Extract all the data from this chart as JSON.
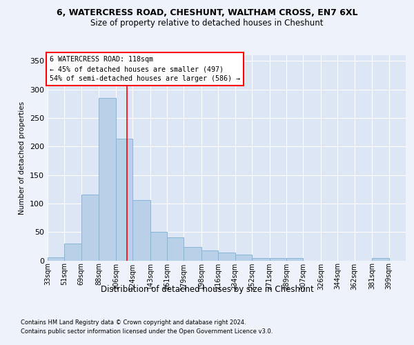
{
  "title": "6, WATERCRESS ROAD, CHESHUNT, WALTHAM CROSS, EN7 6XL",
  "subtitle": "Size of property relative to detached houses in Cheshunt",
  "xlabel_bottom": "Distribution of detached houses by size in Cheshunt",
  "ylabel": "Number of detached properties",
  "bin_edges": [
    33,
    51,
    69,
    88,
    106,
    124,
    143,
    161,
    179,
    198,
    216,
    234,
    252,
    271,
    289,
    307,
    326,
    344,
    362,
    381,
    399,
    417
  ],
  "bar_heights": [
    5,
    30,
    116,
    285,
    213,
    106,
    50,
    40,
    23,
    17,
    14,
    10,
    4,
    4,
    4,
    0,
    0,
    0,
    0,
    4,
    0
  ],
  "bar_labels": [
    "33sqm",
    "51sqm",
    "69sqm",
    "88sqm",
    "106sqm",
    "124sqm",
    "143sqm",
    "161sqm",
    "179sqm",
    "198sqm",
    "216sqm",
    "234sqm",
    "252sqm",
    "271sqm",
    "289sqm",
    "307sqm",
    "326sqm",
    "344sqm",
    "362sqm",
    "381sqm",
    "399sqm"
  ],
  "bar_color": "#b8d0e8",
  "bar_edge_color": "#88b4d8",
  "annotation_line1": "6 WATERCRESS ROAD: 118sqm",
  "annotation_line2": "← 45% of detached houses are smaller (497)",
  "annotation_line3": "54% of semi-detached houses are larger (586) →",
  "red_line_x": 118,
  "ylim_max": 360,
  "yticks": [
    0,
    50,
    100,
    150,
    200,
    250,
    300,
    350
  ],
  "bg_color": "#eef2fa",
  "plot_bg_color": "#dce6f5",
  "grid_color": "#ffffff",
  "footer1": "Contains HM Land Registry data © Crown copyright and database right 2024.",
  "footer2": "Contains public sector information licensed under the Open Government Licence v3.0."
}
